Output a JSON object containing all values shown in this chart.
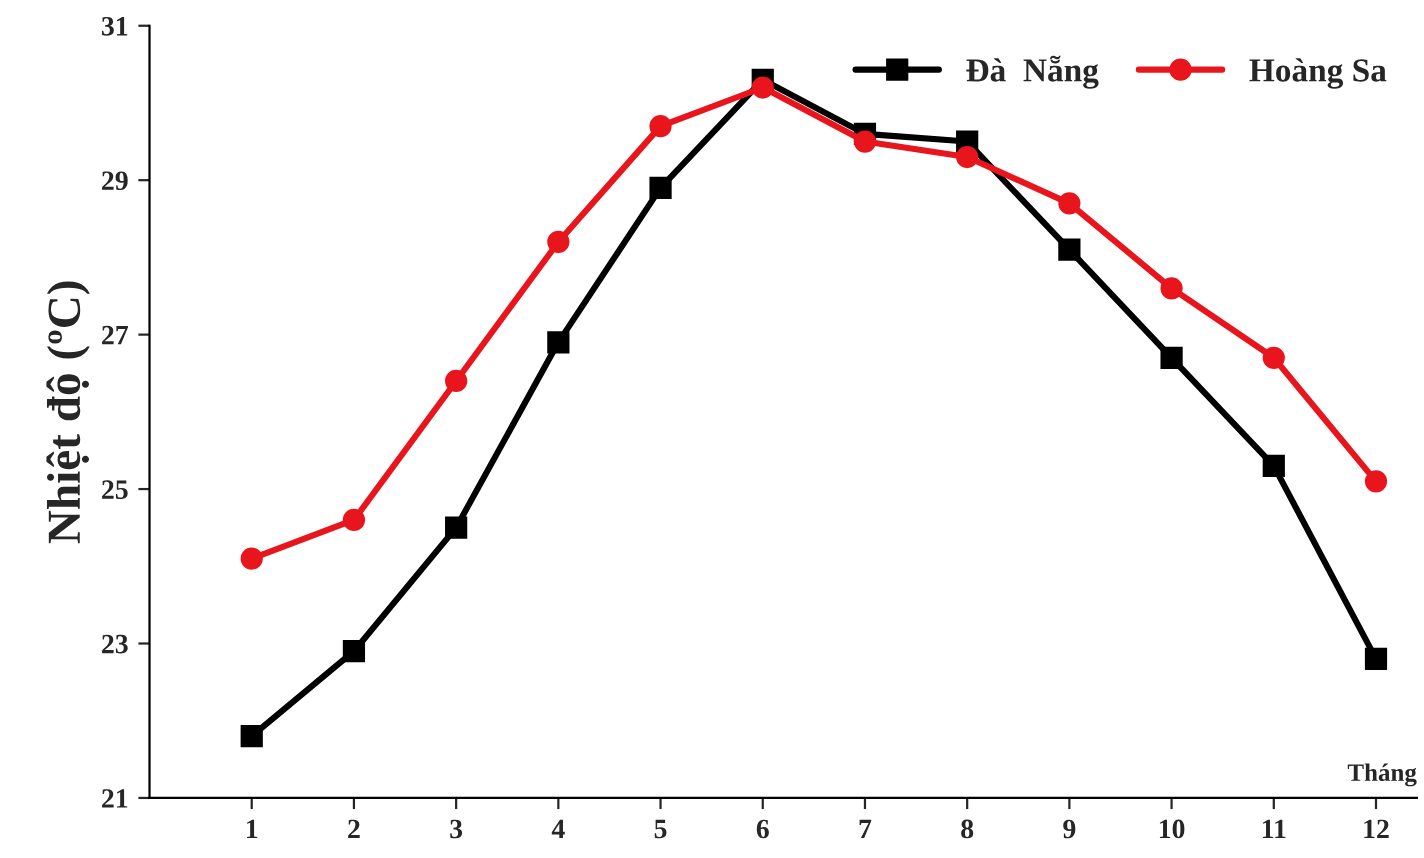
{
  "chart_data": {
    "type": "line",
    "ylabel": "Nhiệt độ (ºC)",
    "xlabel": "Tháng",
    "x": [
      1,
      2,
      3,
      4,
      5,
      6,
      7,
      8,
      9,
      10,
      11,
      12
    ],
    "series": [
      {
        "name": "Đà  Nẵng",
        "color": "#000000",
        "marker": "square",
        "values": [
          21.8,
          22.9,
          24.5,
          26.9,
          28.9,
          30.3,
          29.6,
          29.5,
          28.1,
          26.7,
          25.3,
          22.8
        ]
      },
      {
        "name": "Hoàng Sa",
        "color": "#e8161c",
        "marker": "circle",
        "values": [
          24.1,
          24.6,
          26.4,
          28.2,
          29.7,
          30.2,
          29.5,
          29.3,
          28.7,
          27.6,
          26.7,
          25.1
        ]
      }
    ],
    "xlim": [
      0,
      12.4
    ],
    "xticks": [
      1,
      2,
      3,
      4,
      5,
      6,
      7,
      8,
      9,
      10,
      11,
      12
    ],
    "ylim": [
      21,
      31
    ],
    "yticks": [
      21,
      23,
      25,
      27,
      29,
      31
    ],
    "grid": false,
    "legend": "top right",
    "line_style": "solid"
  }
}
